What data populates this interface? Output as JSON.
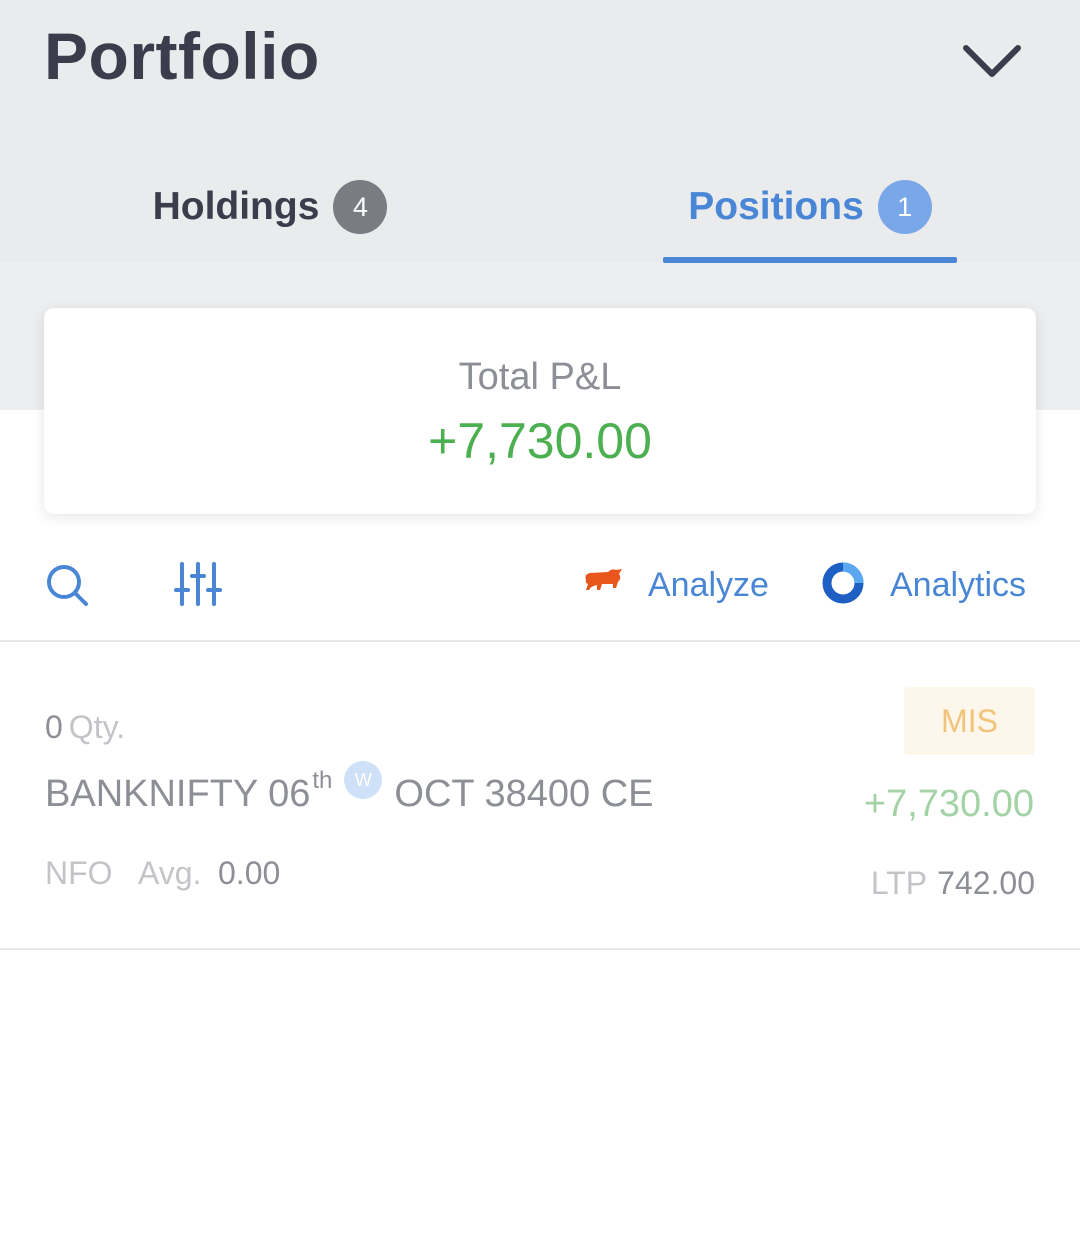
{
  "header": {
    "title": "Portfolio"
  },
  "tabs": [
    {
      "label": "Holdings",
      "count": "4",
      "active": false
    },
    {
      "label": "Positions",
      "count": "1",
      "active": true
    }
  ],
  "summary": {
    "label": "Total P&L",
    "value": "+7,730.00",
    "value_color": "#4caf50"
  },
  "toolbar": {
    "icons": [
      "search-icon",
      "filter-sliders-icon",
      "bull-icon",
      "analytics-ring-icon"
    ],
    "analyze_label": "Analyze",
    "analytics_label": "Analytics"
  },
  "positions": [
    {
      "qty": "0",
      "qty_label": "Qty.",
      "product": "MIS",
      "symbol_main": "BANKNIFTY 06",
      "symbol_sup": "th",
      "weekly_badge": "W",
      "symbol_rest": "OCT 38400 CE",
      "pnl": "+7,730.00",
      "exchange": "NFO",
      "avg_label": "Avg.",
      "avg_value": "0.00",
      "ltp_label": "LTP",
      "ltp_value": "742.00"
    }
  ],
  "colors": {
    "accent": "#4a86d6",
    "profit": "#4caf50",
    "bull": "#e8561d"
  }
}
